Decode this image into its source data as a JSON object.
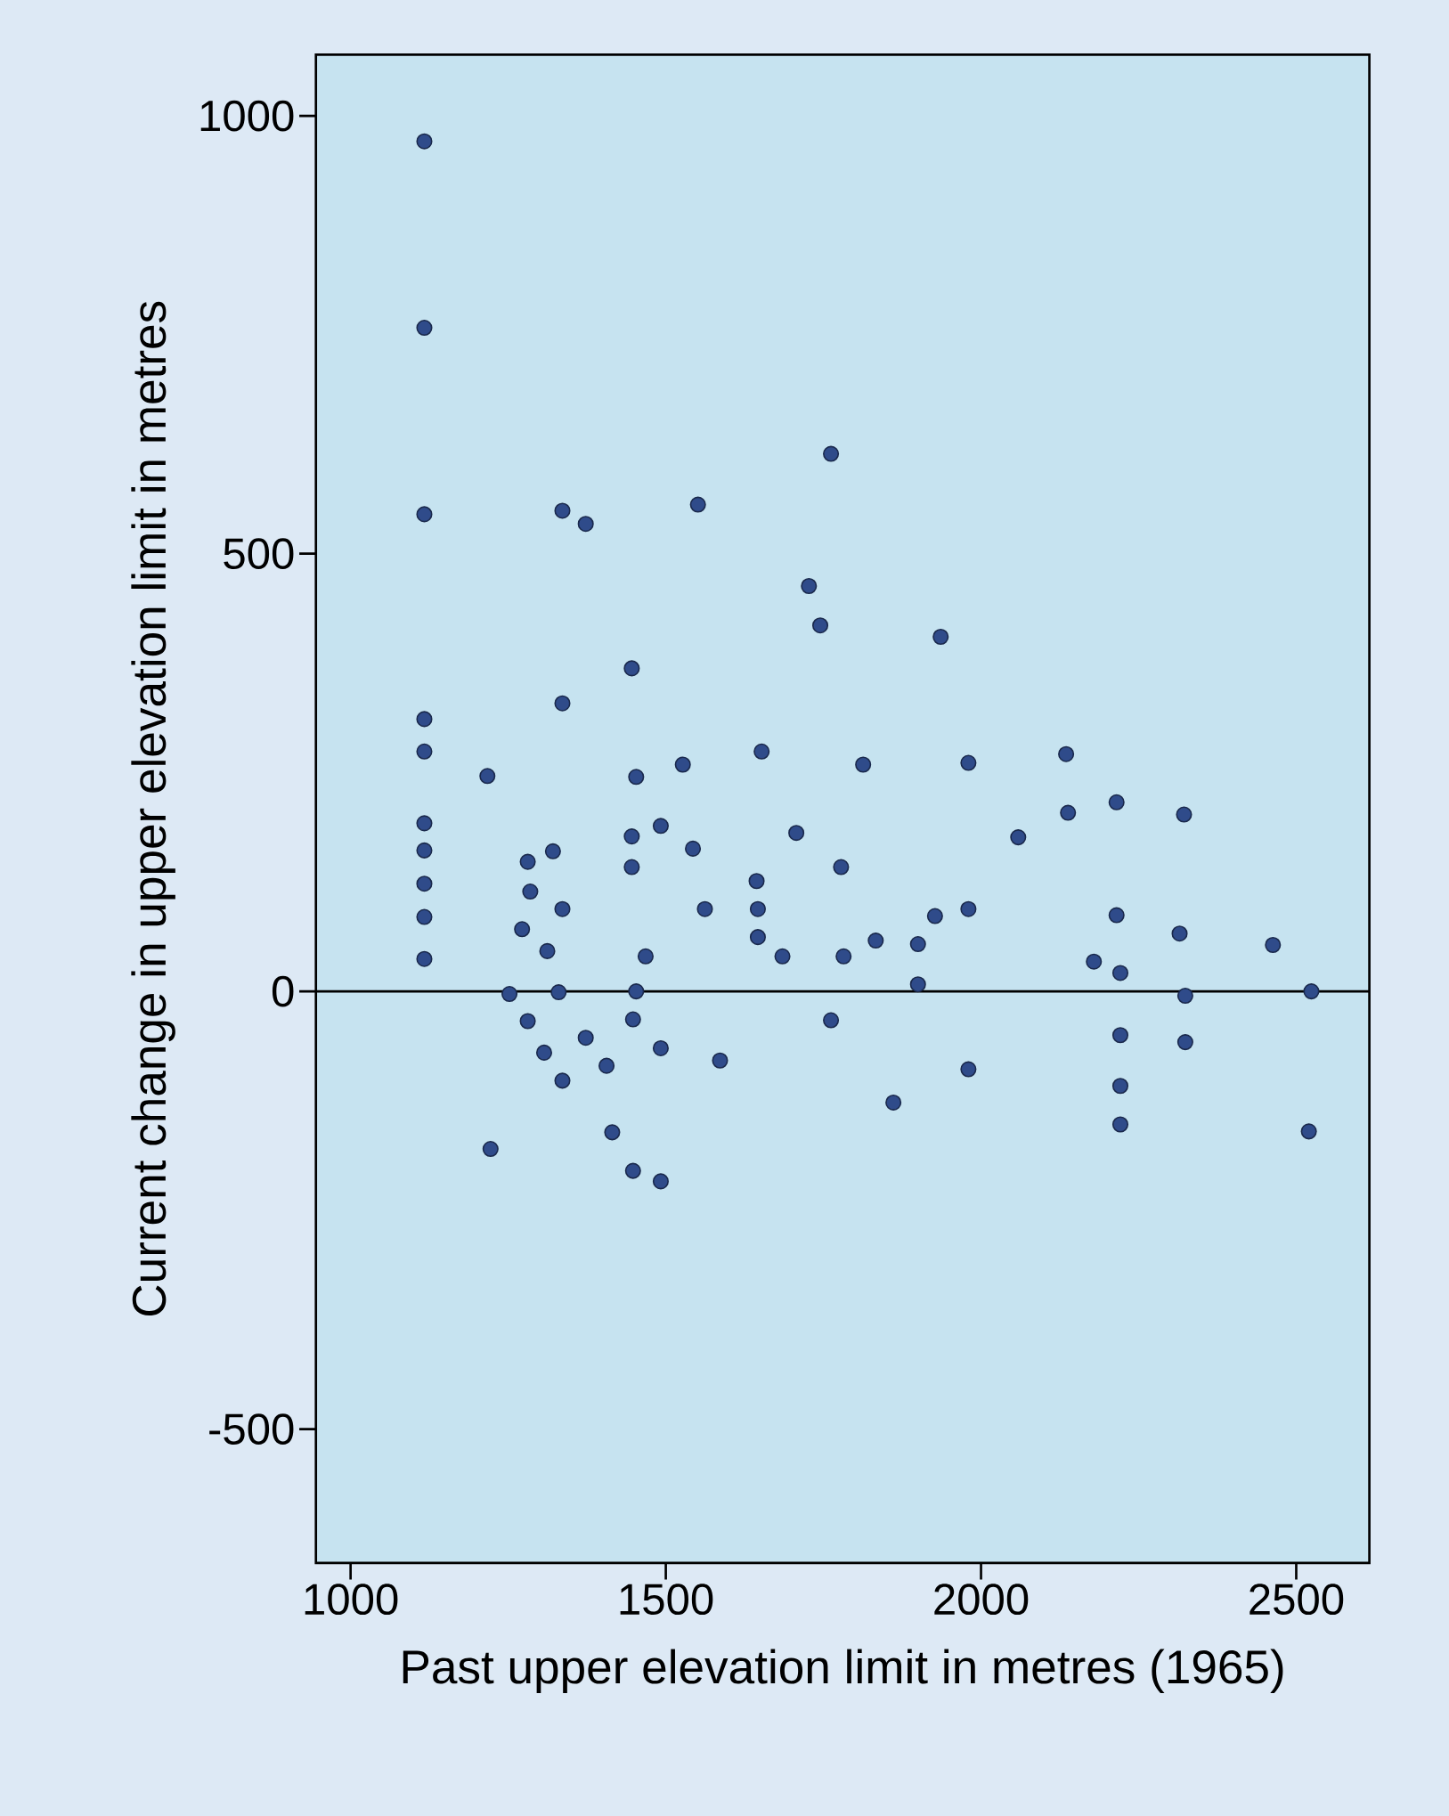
{
  "chart_data": {
    "type": "scatter",
    "xlabel": "Past upper elevation limit in metres (1965)",
    "ylabel": "Current change in upper elevation limit in metres",
    "xlim": [
      945,
      2616
    ],
    "ylim": [
      -653,
      1070
    ],
    "xticks": [
      1000,
      1500,
      2000,
      2500
    ],
    "yticks": [
      -500,
      0,
      500,
      1000
    ],
    "grid": false,
    "marker": "circle",
    "ref_lines": [
      {
        "axis": "y",
        "value": 0,
        "color": "#000000"
      }
    ],
    "series": [
      {
        "color": "#2f4b8a",
        "x": [
          1117,
          1117,
          1117,
          1117,
          1117,
          1117,
          1117,
          1117,
          1117,
          1117,
          1217,
          1222,
          1252,
          1272,
          1281,
          1285,
          1281,
          1307,
          1312,
          1321,
          1330,
          1336,
          1336,
          1336,
          1336,
          1373,
          1373,
          1406,
          1415,
          1446,
          1446,
          1446,
          1448,
          1448,
          1453,
          1453,
          1468,
          1492,
          1492,
          1492,
          1527,
          1543,
          1551,
          1562,
          1586,
          1644,
          1646,
          1646,
          1652,
          1685,
          1707,
          1727,
          1745,
          1762,
          1762,
          1778,
          1782,
          1813,
          1833,
          1861,
          1900,
          1900,
          1927,
          1936,
          1980,
          1980,
          1980,
          2059,
          2135,
          2138,
          2179,
          2215,
          2215,
          2221,
          2221,
          2221,
          2221,
          2315,
          2322,
          2324,
          2324,
          2463,
          2524,
          2520
        ],
        "values": [
          971,
          758,
          545,
          311,
          274,
          192,
          161,
          123,
          85,
          37,
          246,
          -180,
          -3,
          71,
          148,
          114,
          -34,
          -70,
          46,
          160,
          -1,
          549,
          329,
          94,
          -102,
          534,
          -53,
          -85,
          -161,
          369,
          177,
          142,
          -32,
          -205,
          245,
          0,
          40,
          189,
          -65,
          -217,
          259,
          163,
          556,
          94,
          -79,
          126,
          94,
          62,
          274,
          40,
          181,
          463,
          418,
          614,
          -33,
          142,
          40,
          259,
          58,
          -127,
          54,
          8,
          86,
          405,
          261,
          94,
          -89,
          176,
          271,
          204,
          34,
          216,
          87,
          -108,
          -50,
          21,
          -152,
          66,
          202,
          -5,
          -58,
          53,
          0,
          -160
        ]
      }
    ]
  }
}
